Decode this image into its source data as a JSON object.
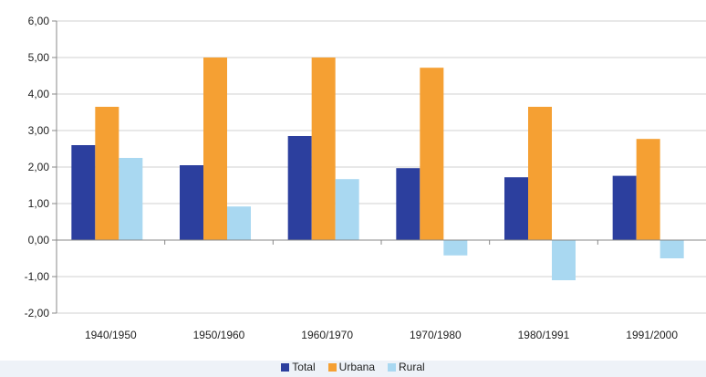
{
  "chart_data": {
    "type": "bar",
    "categories": [
      "1940/1950",
      "1950/1960",
      "1960/1970",
      "1970/1980",
      "1980/1991",
      "1991/2000"
    ],
    "series": [
      {
        "name": "Total",
        "color": "#2c3f9e",
        "values": [
          2.6,
          2.05,
          2.85,
          1.97,
          1.72,
          1.76
        ]
      },
      {
        "name": "Urbana",
        "color": "#f5a033",
        "values": [
          3.65,
          5.0,
          5.0,
          4.72,
          3.65,
          2.77
        ]
      },
      {
        "name": "Rural",
        "color": "#a9d8f1",
        "values": [
          2.25,
          0.92,
          1.67,
          -0.42,
          -1.1,
          -0.5
        ]
      }
    ],
    "y_ticks": [
      "6,00",
      "5,00",
      "4,00",
      "3,00",
      "2,00",
      "1,00",
      "0,00",
      "-1,00",
      "-2,00"
    ],
    "ylim": [
      -2,
      6
    ],
    "grid": true,
    "legend_position": "bottom"
  }
}
